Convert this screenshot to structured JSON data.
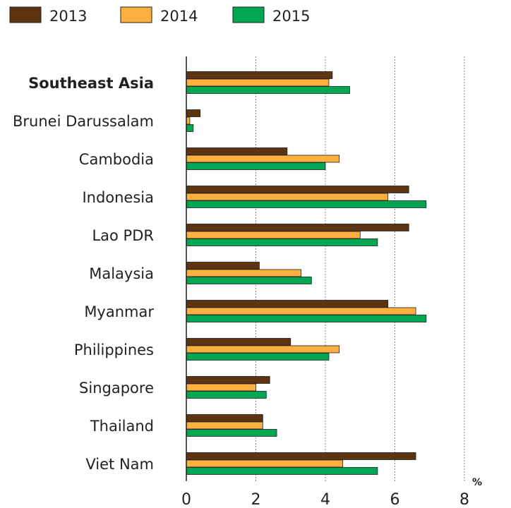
{
  "chart_data": {
    "type": "bar",
    "orientation": "horizontal",
    "categories": [
      "Southeast Asia",
      "Brunei Darussalam",
      "Cambodia",
      "Indonesia",
      "Lao PDR",
      "Malaysia",
      "Myanmar",
      "Philippines",
      "Singapore",
      "Thailand",
      "Viet Nam"
    ],
    "emphasized_categories": [
      "Southeast Asia"
    ],
    "series": [
      {
        "name": "2013",
        "color": "#5c3410",
        "values": [
          4.2,
          0.4,
          2.9,
          6.4,
          6.4,
          2.1,
          5.8,
          3.0,
          2.4,
          2.2,
          6.6
        ]
      },
      {
        "name": "2014",
        "color": "#fbb040",
        "values": [
          4.1,
          0.1,
          4.4,
          5.8,
          5.0,
          3.3,
          6.6,
          4.4,
          2.0,
          2.2,
          4.5
        ]
      },
      {
        "name": "2015",
        "color": "#00a651",
        "values": [
          4.7,
          0.2,
          4.0,
          6.9,
          5.5,
          3.6,
          6.9,
          4.1,
          2.3,
          2.6,
          5.5
        ]
      }
    ],
    "xlim": [
      0,
      8
    ],
    "xticks": [
      "0",
      "2",
      "4",
      "6",
      "8"
    ],
    "unit": "%",
    "grid": "vertical dashed",
    "legend": "top"
  }
}
